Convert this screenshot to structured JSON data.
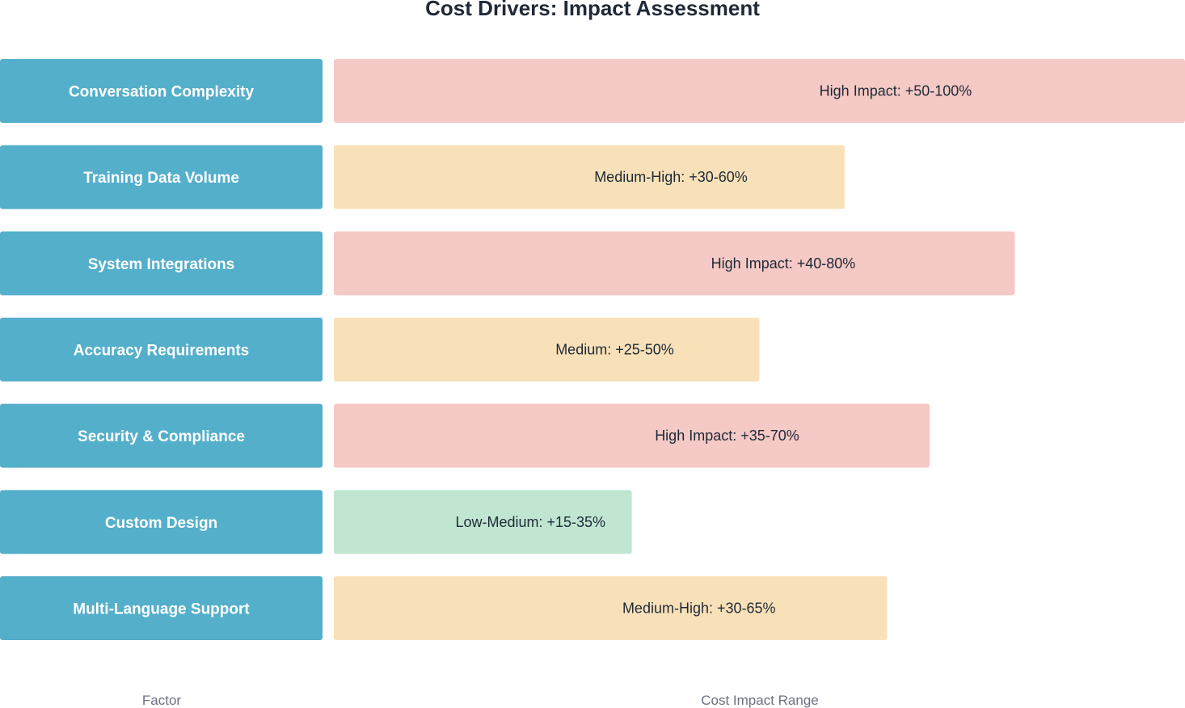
{
  "chart_data": {
    "type": "bar",
    "orientation": "horizontal",
    "title": "Cost Drivers: Impact Assessment",
    "xlabel": "Cost Impact Range",
    "ylabel": "Factor",
    "value_scale_max": 100,
    "categories": [
      "Conversation Complexity",
      "Training Data Volume",
      "System Integrations",
      "Accuracy Requirements",
      "Security & Compliance",
      "Custom Design",
      "Multi-Language Support"
    ],
    "values": [
      100,
      60,
      80,
      50,
      70,
      35,
      65
    ],
    "ranges": [
      [
        50,
        100
      ],
      [
        30,
        60
      ],
      [
        40,
        80
      ],
      [
        25,
        50
      ],
      [
        35,
        70
      ],
      [
        15,
        35
      ],
      [
        30,
        65
      ]
    ],
    "levels": [
      "high",
      "medium-high",
      "high",
      "medium",
      "high",
      "low-medium",
      "medium-high"
    ],
    "labels": [
      "High Impact: +50-100%",
      "Medium-High: +30-60%",
      "High Impact: +40-80%",
      "Medium: +25-50%",
      "High Impact: +35-70%",
      "Low-Medium: +15-35%",
      "Medium-High: +30-65%"
    ],
    "factor_color": "#54afcb",
    "level_colors": {
      "high": "#f5c9c5",
      "medium-high": "#f8e1b8",
      "medium": "#f8e1b8",
      "low-medium": "#c0e6d1"
    },
    "grid": false,
    "legend": "none"
  }
}
